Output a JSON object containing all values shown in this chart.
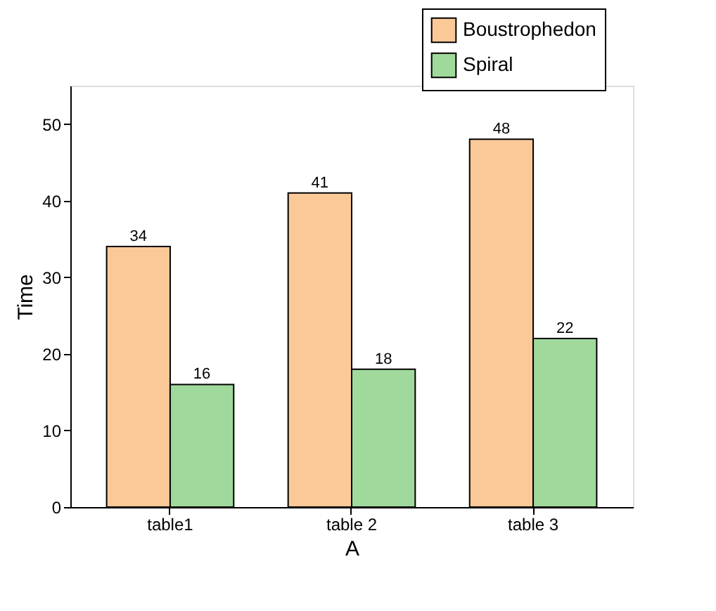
{
  "chart_data": {
    "type": "bar",
    "xlabel": "A",
    "ylabel": "Time",
    "categories": [
      "table1",
      "table 2",
      "table 3"
    ],
    "series": [
      {
        "name": "Boustrophedon",
        "color": "#fbc898",
        "values": [
          34,
          41,
          48
        ]
      },
      {
        "name": "Spiral",
        "color": "#a0d99c",
        "values": [
          16,
          18,
          22
        ]
      }
    ],
    "ylim": [
      0,
      55
    ],
    "yticks": [
      0,
      10,
      20,
      30,
      40,
      50
    ],
    "grid": false,
    "legend": "top right",
    "data_labels": true
  }
}
